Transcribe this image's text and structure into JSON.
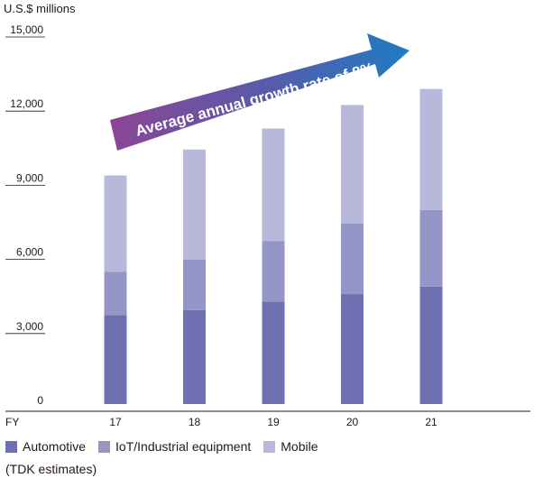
{
  "chart_data": {
    "type": "bar",
    "stacked": true,
    "unit_label": "U.S.$ millions",
    "x_axis_prefix": "FY",
    "categories": [
      "17",
      "18",
      "19",
      "20",
      "21"
    ],
    "series": [
      {
        "name": "Automotive",
        "color": "#6e70b2",
        "values": [
          3600,
          3800,
          4150,
          4450,
          4750
        ]
      },
      {
        "name": "IoT/Industrial equipment",
        "color": "#9496c8",
        "values": [
          1750,
          2050,
          2450,
          2850,
          3100
        ]
      },
      {
        "name": "Mobile",
        "color": "#b7b8da",
        "values": [
          3900,
          4450,
          4550,
          4800,
          4900
        ]
      }
    ],
    "yticks": [
      "0",
      "3,000",
      "6,000",
      "9,000",
      "12,000",
      "15,000"
    ],
    "ylim": [
      0,
      15000
    ],
    "annotation": "Average annual growth rate of 8%",
    "note": "(TDK estimates)"
  }
}
